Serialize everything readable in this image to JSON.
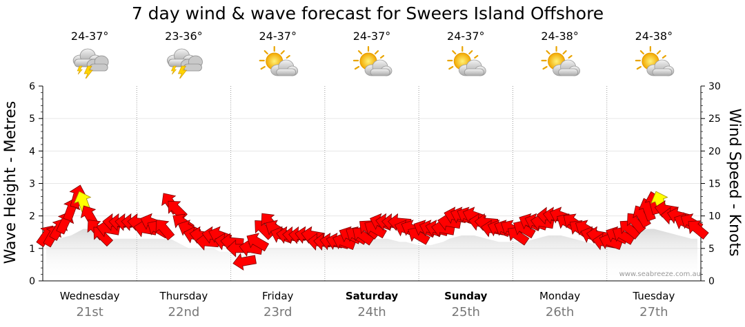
{
  "chart_data": {
    "type": "line",
    "title": "7 day wind & wave forecast for Sweers Island Offshore",
    "ylabel_left": "Wave Height - Metres",
    "ylabel_right": "Wind Speed - Knots",
    "ylim_left": [
      0,
      6
    ],
    "ylim_right": [
      0,
      30
    ],
    "yticks_left": [
      "0",
      "1",
      "2",
      "3",
      "4",
      "5",
      "6"
    ],
    "yticks_right": [
      "0",
      "5",
      "10",
      "15",
      "20",
      "25",
      "30"
    ],
    "days": [
      {
        "day": "Wednesday",
        "date": "21st",
        "temp": "24-37°",
        "icon": "thunderstorm-icon",
        "bold": false
      },
      {
        "day": "Thursday",
        "date": "22nd",
        "temp": "23-36°",
        "icon": "thunderstorm-icon",
        "bold": false
      },
      {
        "day": "Friday",
        "date": "23rd",
        "temp": "24-37°",
        "icon": "sun-cloud-icon",
        "bold": false
      },
      {
        "day": "Saturday",
        "date": "24th",
        "temp": "24-37°",
        "icon": "sun-cloud-icon",
        "bold": true
      },
      {
        "day": "Sunday",
        "date": "25th",
        "temp": "24-37°",
        "icon": "sun-cloud-icon",
        "bold": true
      },
      {
        "day": "Monday",
        "date": "26th",
        "temp": "24-38°",
        "icon": "sun-cloud-icon",
        "bold": false
      },
      {
        "day": "Tuesday",
        "date": "27th",
        "temp": "24-38°",
        "icon": "sun-cloud-icon",
        "bold": false
      }
    ],
    "series": [
      {
        "name": "Wind Speed - Knots",
        "unit": "knots",
        "values": [
          7,
          7,
          8,
          9,
          11,
          13,
          12,
          10,
          8,
          7,
          8,
          9,
          9,
          9,
          9,
          9,
          8,
          9,
          8,
          8,
          12,
          11,
          9,
          8,
          7,
          7,
          6,
          7,
          7,
          6,
          6,
          5,
          3,
          5,
          6,
          8,
          9,
          8,
          7,
          7,
          7,
          7,
          7,
          7,
          6,
          6,
          6,
          6,
          6,
          7,
          7,
          7,
          8,
          8,
          9,
          9,
          9,
          9,
          8,
          8,
          7,
          8,
          8,
          8,
          8,
          9,
          10,
          10,
          10,
          10,
          9,
          9,
          8,
          8,
          8,
          8,
          7,
          8,
          9,
          9,
          9,
          10,
          10,
          10,
          9,
          9,
          8,
          8,
          7,
          7,
          6,
          6,
          7,
          7,
          8,
          9,
          10,
          11,
          12,
          12,
          11,
          10,
          10,
          9,
          9,
          8
        ]
      },
      {
        "name": "Wave Height - Metres",
        "unit": "m",
        "values": [
          1.3,
          1.3,
          1.3,
          1.35,
          1.4,
          1.5,
          1.6,
          1.6,
          1.5,
          1.4,
          1.3,
          1.3,
          1.3,
          1.3,
          1.3,
          1.3,
          1.3,
          1.3,
          1.3,
          1.3,
          1.3,
          1.2,
          1.1,
          1.0,
          1.0,
          1.0,
          1.0,
          1.0,
          0.9,
          0.9,
          0.9,
          0.85,
          0.8,
          0.85,
          0.9,
          0.95,
          1.0,
          1.0,
          1.0,
          1.0,
          1.0,
          1.0,
          1.0,
          1.0,
          1.0,
          1.05,
          1.1,
          1.1,
          1.1,
          1.15,
          1.2,
          1.25,
          1.3,
          1.3,
          1.3,
          1.3,
          1.25,
          1.2,
          1.2,
          1.15,
          1.1,
          1.1,
          1.1,
          1.15,
          1.2,
          1.3,
          1.35,
          1.4,
          1.4,
          1.4,
          1.35,
          1.3,
          1.25,
          1.2,
          1.2,
          1.2,
          1.2,
          1.2,
          1.25,
          1.3,
          1.35,
          1.4,
          1.4,
          1.4,
          1.35,
          1.3,
          1.25,
          1.2,
          1.15,
          1.1,
          1.1,
          1.15,
          1.2,
          1.3,
          1.4,
          1.5,
          1.55,
          1.6,
          1.6,
          1.55,
          1.5,
          1.45,
          1.4,
          1.35,
          1.3,
          1.3
        ]
      },
      {
        "name": "Wind Direction",
        "unit": "degrees-from",
        "values": [
          215,
          210,
          210,
          205,
          200,
          195,
          160,
          150,
          140,
          135,
          100,
          95,
          95,
          95,
          95,
          95,
          100,
          110,
          120,
          140,
          145,
          135,
          125,
          115,
          105,
          100,
          95,
          100,
          110,
          100,
          95,
          90,
          80,
          100,
          120,
          135,
          140,
          120,
          110,
          100,
          95,
          95,
          100,
          100,
          95,
          95,
          100,
          105,
          110,
          115,
          120,
          125,
          130,
          120,
          110,
          100,
          95,
          95,
          110,
          115,
          120,
          115,
          110,
          105,
          100,
          100,
          105,
          110,
          115,
          110,
          100,
          95,
          100,
          110,
          115,
          120,
          125,
          120,
          115,
          110,
          100,
          95,
          100,
          110,
          120,
          125,
          125,
          120,
          110,
          100,
          100,
          110,
          115,
          120,
          130,
          140,
          150,
          160,
          165,
          160,
          100,
          95,
          105,
          115,
          120,
          130
        ]
      }
    ],
    "yellow_markers": [
      {
        "label": "thunderstorm marker",
        "series_index": 6
      },
      {
        "label": "thunderstorm marker",
        "series_index": 99
      }
    ],
    "credit": "www.seabreeze.com.au"
  }
}
